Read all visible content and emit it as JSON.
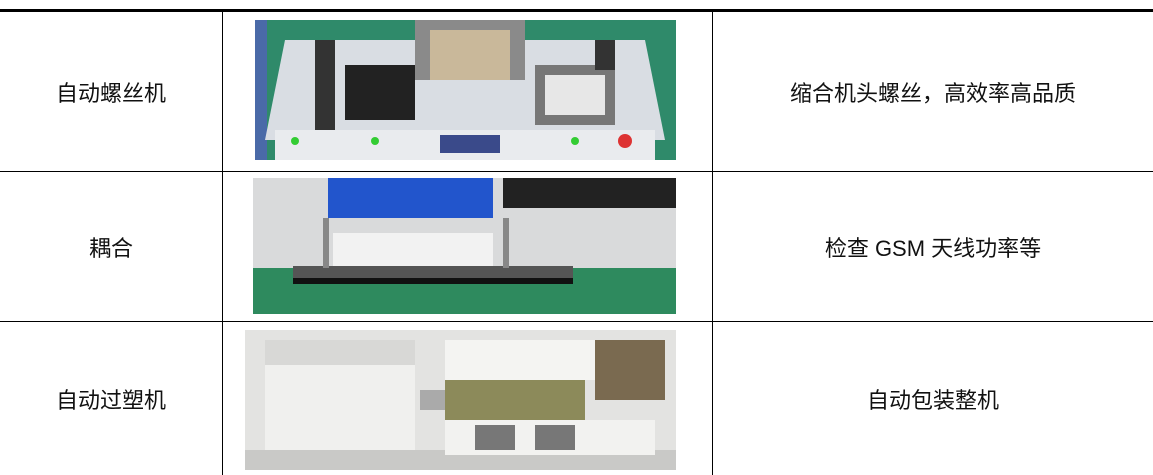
{
  "table": {
    "rows": [
      [
        "自动螺丝机",
        "缩合机头螺丝，高效率高品质"
      ],
      [
        "耦合",
        "检查 GSM 天线功率等"
      ],
      [
        "自动过塑机",
        "自动包装整机"
      ]
    ]
  }
}
